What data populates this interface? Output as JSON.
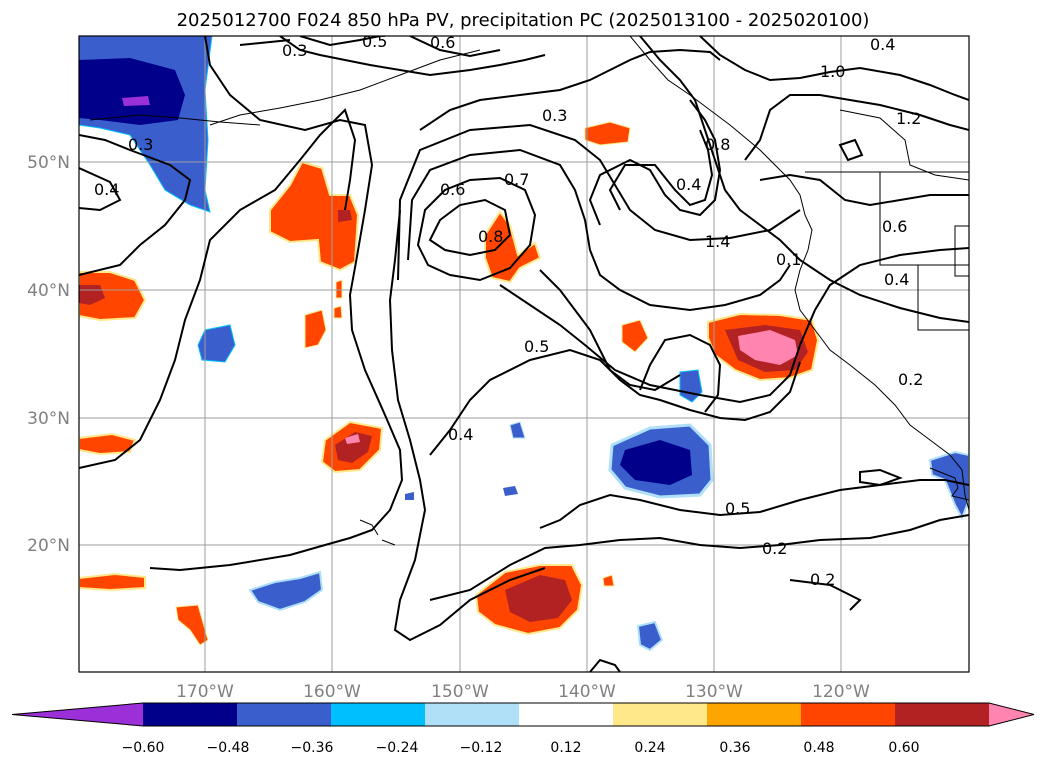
{
  "title": "2025012700 F024 850 hPa PV, precipitation PC (2025013100 - 2025020100)",
  "map": {
    "lon_labels": [
      "170°W",
      "160°W",
      "150°W",
      "140°W",
      "130°W",
      "120°W"
    ],
    "lat_labels": [
      "50°N",
      "40°N",
      "30°N",
      "20°N"
    ],
    "grid": true,
    "contour_labels": [
      "0.3",
      "0.5",
      "0.6",
      "0.3",
      "0.4",
      "1.0",
      "1.2",
      "0.3",
      "0.4",
      "0.8",
      "0.4",
      "0.6",
      "0.7",
      "0.8",
      "1.4",
      "0.1",
      "0.6",
      "0.4",
      "0.5",
      "0.2",
      "0.4",
      "0.5",
      "0.2",
      "0.2"
    ]
  },
  "colorbar": {
    "ticks": [
      "−0.60",
      "−0.48",
      "−0.36",
      "−0.24",
      "−0.12",
      "0.12",
      "0.24",
      "0.36",
      "0.48",
      "0.60"
    ],
    "colors": [
      "#9b30d8",
      "#00008b",
      "#3a5fcd",
      "#00bfff",
      "#b0e0f8",
      "#ffffff",
      "#ffe88a",
      "#ffa500",
      "#ff4500",
      "#b22222",
      "#ff85b0"
    ]
  }
}
